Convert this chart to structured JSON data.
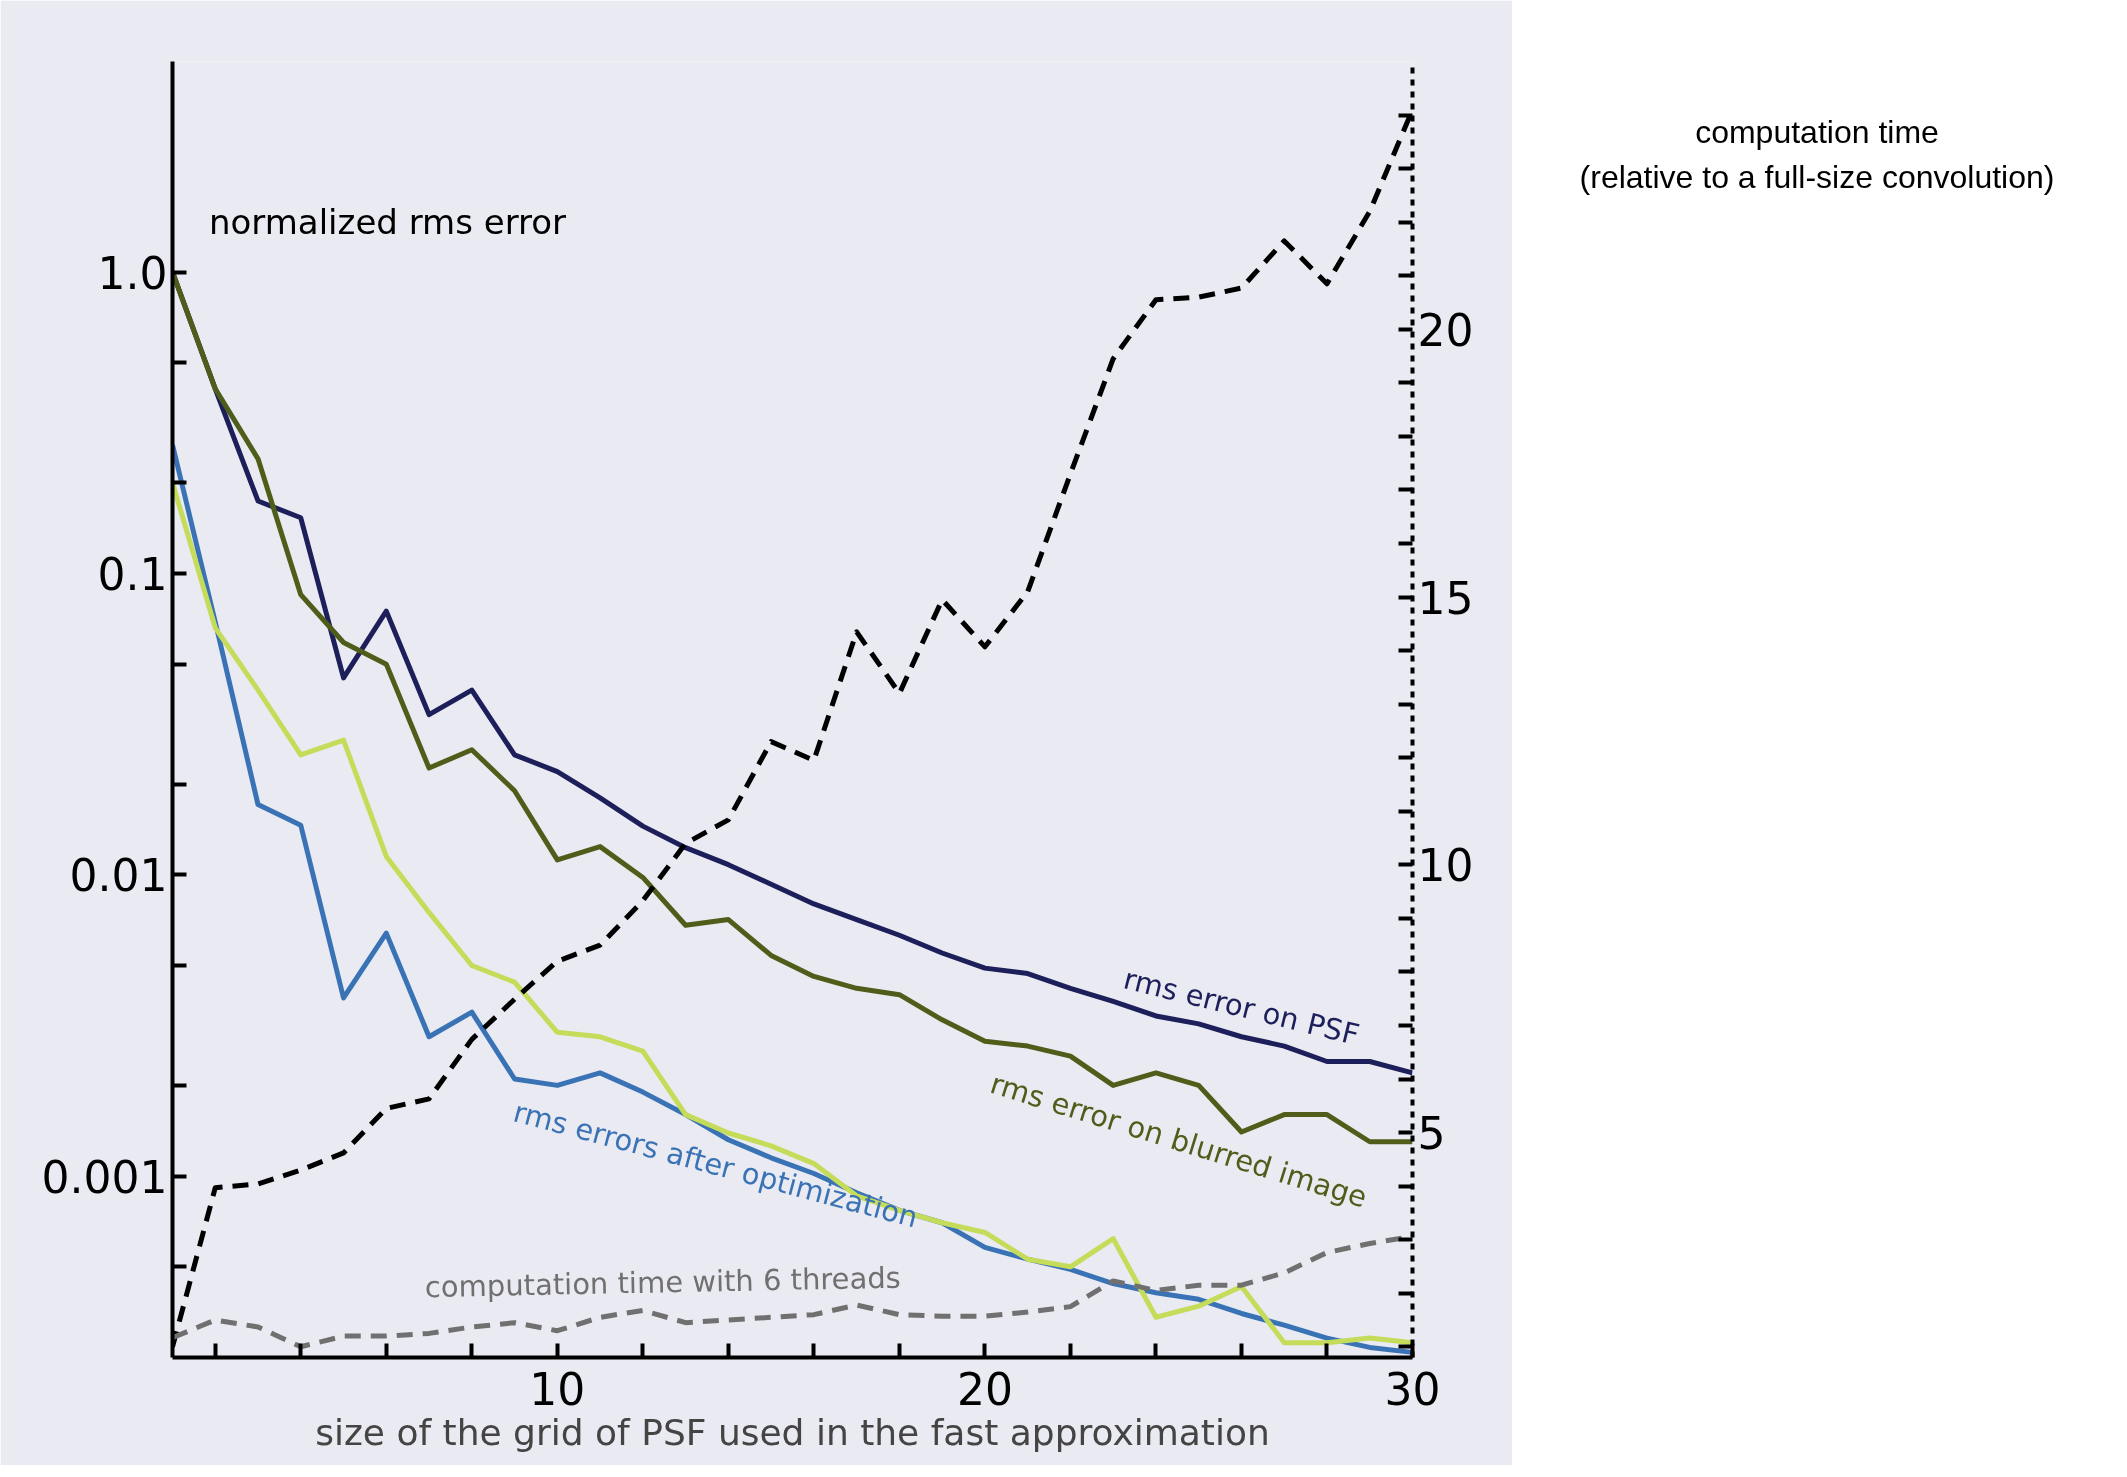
{
  "chart_data": {
    "type": "line",
    "xlabel": "size of the grid of PSF used in the fast approximation",
    "ylabel": "normalized rms error",
    "y2label": "computation time\n(relative to a full-size convolution)",
    "x": [
      1,
      2,
      3,
      4,
      5,
      6,
      7,
      8,
      9,
      10,
      11,
      12,
      13,
      14,
      15,
      16,
      17,
      18,
      19,
      20,
      21,
      22,
      23,
      24,
      25,
      26,
      27,
      28,
      29,
      30
    ],
    "xlim": [
      1,
      30
    ],
    "xticks": [
      {
        "value": 2,
        "label": null
      },
      {
        "value": 4,
        "label": null
      },
      {
        "value": 6,
        "label": null
      },
      {
        "value": 8,
        "label": null
      },
      10,
      {
        "value": 12,
        "label": null
      },
      {
        "value": 14,
        "label": null
      },
      {
        "value": 16,
        "label": null
      },
      {
        "value": 18,
        "label": null
      },
      20,
      {
        "value": 22,
        "label": null
      },
      {
        "value": 24,
        "label": null
      },
      {
        "value": 26,
        "label": null
      },
      {
        "value": 28,
        "label": null
      },
      30
    ],
    "log": "y",
    "ylim": [
      0.00025,
      5
    ],
    "yticks": [
      {
        "value": 1,
        "label": "1.0"
      },
      {
        "value": 0.5,
        "label": null
      },
      {
        "value": 0.2,
        "label": null
      },
      0.1,
      {
        "value": 0.05,
        "label": null
      },
      {
        "value": 0.02,
        "label": null
      },
      0.01,
      {
        "value": 0.005,
        "label": null
      },
      {
        "value": 0.002,
        "label": null
      },
      0.001,
      {
        "value": 0.0005,
        "label": null
      }
    ],
    "y2lim": [
      0.8,
      25
    ],
    "y2ticks": [
      {
        "value": 1,
        "label": null
      },
      {
        "value": 2,
        "label": null
      },
      {
        "value": 3,
        "label": null
      },
      {
        "value": 4,
        "label": null
      },
      5,
      {
        "value": 6,
        "label": null
      },
      {
        "value": 7,
        "label": null
      },
      {
        "value": 8,
        "label": null
      },
      {
        "value": 9,
        "label": null
      },
      10,
      {
        "value": 11,
        "label": null
      },
      {
        "value": 12,
        "label": null
      },
      {
        "value": 13,
        "label": null
      },
      {
        "value": 14,
        "label": null
      },
      15,
      {
        "value": 16,
        "label": null
      },
      {
        "value": 17,
        "label": null
      },
      {
        "value": 18,
        "label": null
      },
      {
        "value": 19,
        "label": null
      },
      20,
      {
        "value": 21,
        "label": null
      },
      {
        "value": 22,
        "label": null
      },
      {
        "value": 23,
        "label": null
      },
      {
        "value": 24,
        "label": null
      }
    ],
    "grid": false,
    "legend": false,
    "marker": "none",
    "series": [
      {
        "name": "rms error on PSF",
        "color": "#1c1f5a",
        "line_style": "solid",
        "values": [
          1.0,
          0.41,
          0.174,
          0.153,
          0.045,
          0.075,
          0.034,
          0.041,
          0.025,
          0.022,
          0.018,
          0.0145,
          0.0123,
          0.0108,
          0.0093,
          0.008,
          0.0071,
          0.0063,
          0.0055,
          0.0049,
          0.0047,
          0.0042,
          0.0038,
          0.0034,
          0.0032,
          0.0029,
          0.0027,
          0.0024,
          0.0024,
          0.0022
        ]
      },
      {
        "name": "rms error on blurred image",
        "color": "#4e5e1a",
        "line_style": "solid",
        "values": [
          1.0,
          0.41,
          0.24,
          0.085,
          0.059,
          0.05,
          0.0226,
          0.026,
          0.019,
          0.0112,
          0.0124,
          0.0098,
          0.0068,
          0.0071,
          0.0054,
          0.0046,
          0.0042,
          0.004,
          0.0033,
          0.0028,
          0.0027,
          0.0025,
          0.002,
          0.0022,
          0.002,
          0.0014,
          0.0016,
          0.0016,
          0.0013,
          0.0013
        ]
      },
      {
        "name": "rms errors after optimization",
        "color": "#3a73b5",
        "line_style": "solid",
        "values": [
          0.267,
          0.069,
          0.0171,
          0.0146,
          0.0039,
          0.0064,
          0.0029,
          0.0035,
          0.0021,
          0.002,
          0.0022,
          0.0019,
          0.0016,
          0.00132,
          0.00115,
          0.00102,
          0.00088,
          0.00077,
          0.0007,
          0.00058,
          0.00053,
          0.00049,
          0.00044,
          0.00041,
          0.00039,
          0.00035,
          0.00032,
          0.00029,
          0.00027,
          0.00026
        ]
      },
      {
        "color": "#c5dc5a",
        "line_style": "solid",
        "values": [
          0.2,
          0.066,
          0.041,
          0.025,
          0.028,
          0.0115,
          0.0075,
          0.005,
          0.0044,
          0.003,
          0.0029,
          0.0026,
          0.0016,
          0.00139,
          0.00126,
          0.0011,
          0.00086,
          0.00077,
          0.0007,
          0.00065,
          0.00053,
          0.0005,
          0.00062,
          0.00034,
          0.00037,
          0.00043,
          0.00028,
          0.00028,
          0.00029,
          0.00028
        ]
      },
      {
        "color": "#000000",
        "axis": "y2",
        "line_style": "dashed",
        "values": [
          1.0,
          3.97,
          4.04,
          4.3,
          4.62,
          5.45,
          5.63,
          6.74,
          7.49,
          8.2,
          8.5,
          9.33,
          10.4,
          10.84,
          12.3,
          11.95,
          14.35,
          13.2,
          14.95,
          14.07,
          15.1,
          17.3,
          19.45,
          20.55,
          20.6,
          20.77,
          21.65,
          20.85,
          22.2,
          24.1
        ]
      },
      {
        "name": "computation time with 6 threads",
        "color": "#707070",
        "axis": "y2",
        "line_style": "dashed",
        "values": [
          1.17,
          1.5,
          1.37,
          1.0,
          1.2,
          1.2,
          1.25,
          1.37,
          1.45,
          1.3,
          1.55,
          1.68,
          1.45,
          1.5,
          1.55,
          1.6,
          1.78,
          1.6,
          1.57,
          1.57,
          1.65,
          1.75,
          2.23,
          2.05,
          2.15,
          2.15,
          2.38,
          2.76,
          2.93,
          3.06
        ]
      }
    ]
  }
}
